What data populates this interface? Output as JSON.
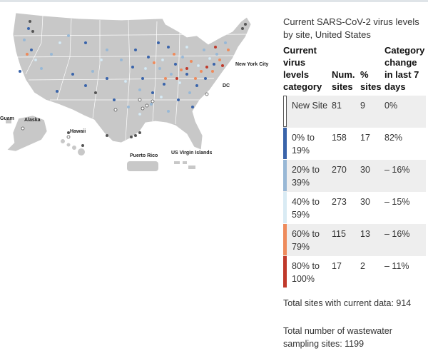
{
  "panel": {
    "title": "Current SARS-CoV-2 virus levels by site, United States"
  },
  "table": {
    "headers": {
      "category": "Current virus levels category",
      "num_sites": "Num. sites",
      "pct_sites": "% sites",
      "change": "Category change in last 7 days"
    },
    "rows": [
      {
        "category": "New Site",
        "num": "81",
        "pct": "9",
        "change": "0%",
        "color": "#ffffff",
        "border": "#555555"
      },
      {
        "category": "0% to 19%",
        "num": "158",
        "pct": "17",
        "change": "82%",
        "color": "#3a64aa",
        "border": "#3a64aa"
      },
      {
        "category": "20% to 39%",
        "num": "270",
        "pct": "30",
        "change": "– 16%",
        "color": "#98b8d6",
        "border": "#98b8d6"
      },
      {
        "category": "40% to 59%",
        "num": "273",
        "pct": "30",
        "change": "– 15%",
        "color": "#d9ebf4",
        "border": "#d9ebf4"
      },
      {
        "category": "60% to 79%",
        "num": "115",
        "pct": "13",
        "change": "– 16%",
        "color": "#ee8b5c",
        "border": "#ee8b5c"
      },
      {
        "category": "80% to 100%",
        "num": "17",
        "pct": "2",
        "change": "– 11%",
        "color": "#c0392b",
        "border": "#c0392b"
      }
    ]
  },
  "footer": {
    "total_current": "Total sites with current data: 914",
    "total_sampling": "Total number of wastewater sampling sites: 1199"
  },
  "map": {
    "labels": {
      "new_york": "New York City",
      "dc": "DC",
      "guam": "Guam",
      "alaska": "Alaska",
      "hawaii": "Hawaii",
      "puerto_rico": "Puerto Rico",
      "usvi": "US Virgin Islands"
    },
    "colors": {
      "land": "#c8c8c8",
      "border": "#ffffff",
      "no_data": "#555555"
    }
  }
}
